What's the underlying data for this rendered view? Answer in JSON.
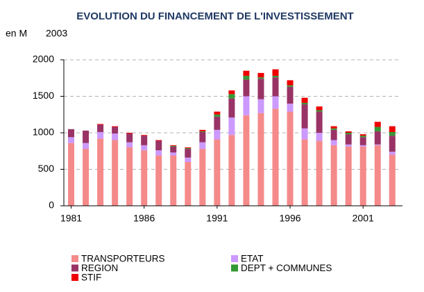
{
  "chart_data": {
    "type": "stacked_bar",
    "title": "EVOLUTION DU FINANCEMENT DE L'INVESTISSEMENT",
    "y_axis_label": "en M",
    "subtitle": "2003",
    "x": [
      1981,
      1982,
      1983,
      1984,
      1985,
      1986,
      1987,
      1988,
      1989,
      1990,
      1991,
      1992,
      1993,
      1994,
      1995,
      1996,
      1997,
      1998,
      1999,
      2000,
      2001,
      2002,
      2003
    ],
    "xlim": [
      1980.5,
      2003.7
    ],
    "xticks": [
      1981,
      1986,
      1991,
      1996,
      2001
    ],
    "ylim": [
      0,
      2000
    ],
    "yticks": [
      0,
      500,
      1000,
      1500,
      2000
    ],
    "grid": true,
    "legend": "bottom",
    "series": [
      {
        "name": "TRANSPORTEURS",
        "color": "#f58a8a",
        "values": [
          860,
          780,
          920,
          900,
          800,
          760,
          690,
          690,
          600,
          780,
          910,
          970,
          1240,
          1270,
          1330,
          1290,
          910,
          890,
          830,
          810,
          810,
          830,
          700
        ]
      },
      {
        "name": "ETAT",
        "color": "#cc99ff",
        "values": [
          80,
          80,
          90,
          90,
          70,
          70,
          70,
          40,
          60,
          90,
          130,
          240,
          260,
          190,
          170,
          110,
          150,
          110,
          70,
          30,
          20,
          10,
          40
        ]
      },
      {
        "name": "REGION",
        "color": "#993366",
        "values": [
          110,
          170,
          100,
          90,
          120,
          130,
          130,
          80,
          120,
          140,
          180,
          260,
          230,
          280,
          260,
          230,
          330,
          290,
          140,
          140,
          110,
          180,
          220
        ]
      },
      {
        "name": "DEPT + COMMUNES",
        "color": "#339933",
        "values": [
          0,
          0,
          0,
          0,
          0,
          0,
          0,
          10,
          10,
          10,
          30,
          60,
          50,
          20,
          20,
          20,
          20,
          20,
          20,
          20,
          20,
          60,
          50
        ]
      },
      {
        "name": "STIF",
        "color": "#ee0000",
        "values": [
          0,
          0,
          10,
          10,
          10,
          10,
          10,
          10,
          10,
          20,
          40,
          50,
          70,
          60,
          90,
          70,
          70,
          50,
          30,
          20,
          20,
          70,
          80
        ]
      }
    ]
  }
}
